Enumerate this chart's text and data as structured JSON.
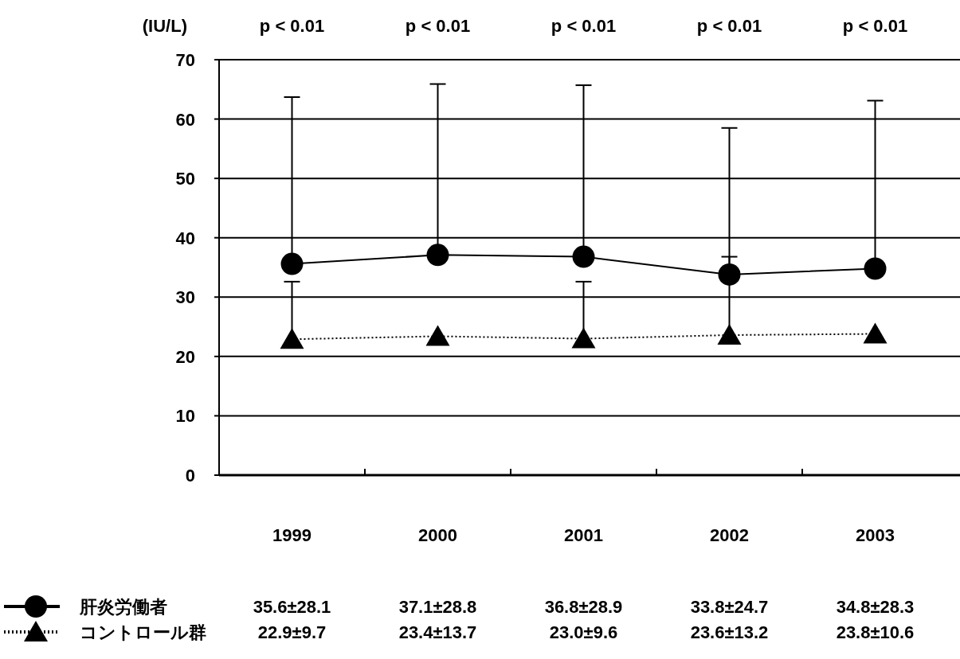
{
  "chart_data": {
    "type": "line",
    "ylabel": "(IU/L)",
    "categories": [
      "1999",
      "2000",
      "2001",
      "2002",
      "2003"
    ],
    "ylim": [
      0,
      70
    ],
    "yticks": [
      0,
      10,
      20,
      30,
      40,
      50,
      60,
      70
    ],
    "grid": "y",
    "legend": "bottom",
    "series": [
      {
        "name": "肝炎労働者",
        "color": "#000000",
        "marker": "circle",
        "line_style": "solid",
        "values": [
          35.6,
          37.1,
          36.8,
          33.8,
          34.8
        ],
        "errors": [
          [
            35.6,
            63.7
          ],
          [
            37.1,
            65.9
          ],
          [
            36.8,
            65.7
          ],
          [
            33.8,
            58.5
          ],
          [
            34.8,
            63.1
          ]
        ],
        "value_labels": [
          "35.6±28.1",
          "37.1±28.8",
          "36.8±28.9",
          "33.8±24.7",
          "34.8±28.3"
        ]
      },
      {
        "name": "コントロール群",
        "color": "#000000",
        "marker": "triangle",
        "line_style": "dotted",
        "values": [
          22.9,
          23.4,
          23.0,
          23.6,
          23.8
        ],
        "errors": [
          [
            22.9,
            32.6
          ],
          null,
          [
            23.0,
            32.6
          ],
          [
            23.6,
            36.8
          ],
          null
        ],
        "value_labels": [
          "22.9±9.7",
          "23.4±13.7",
          "23.0±9.6",
          "23.6±13.2",
          "23.8±10.6"
        ]
      }
    ],
    "annotations": [
      "p < 0.01",
      "p < 0.01",
      "p < 0.01",
      "p < 0.01",
      "p < 0.01"
    ]
  }
}
